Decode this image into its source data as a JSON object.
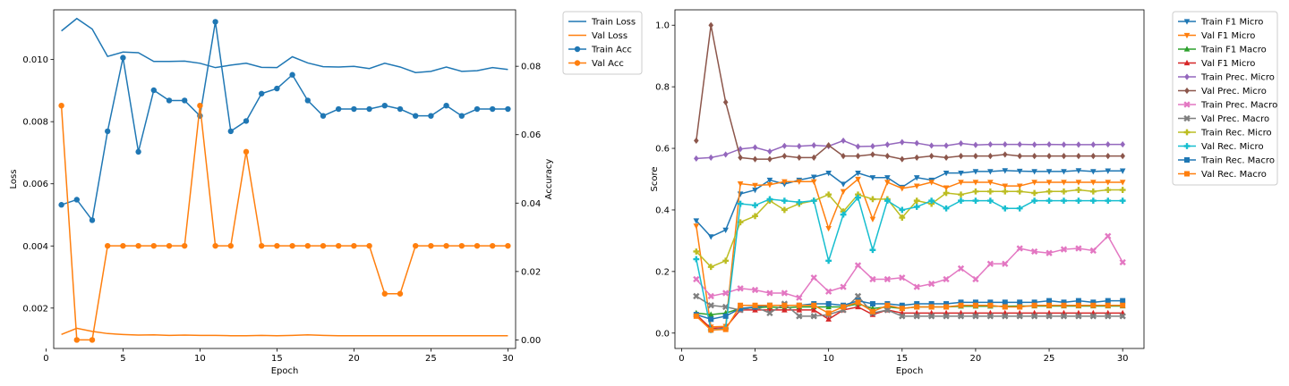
{
  "chart_data": [
    {
      "type": "line",
      "xlabel": "Epoch",
      "ylabel": "Loss",
      "y2label": "Accuracy",
      "x": [
        1,
        2,
        3,
        4,
        5,
        6,
        7,
        8,
        9,
        10,
        11,
        12,
        13,
        14,
        15,
        16,
        17,
        18,
        19,
        20,
        21,
        22,
        23,
        24,
        25,
        26,
        27,
        28,
        29,
        30
      ],
      "xlim": [
        0.5,
        30.5
      ],
      "ylim": [
        0.0007,
        0.0116
      ],
      "y2lim": [
        -0.0025,
        0.0965
      ],
      "xticks": [
        0,
        5,
        10,
        15,
        20,
        25,
        30
      ],
      "yticks": [
        0.002,
        0.004,
        0.006,
        0.008,
        0.01
      ],
      "ytick_labels": [
        "0.002",
        "0.004",
        "0.006",
        "0.008",
        "0.010"
      ],
      "y2ticks": [
        0.0,
        0.02,
        0.04,
        0.06,
        0.08
      ],
      "y2tick_labels": [
        "0.00",
        "0.02",
        "0.04",
        "0.06",
        "0.08"
      ],
      "grid": false,
      "legend_position": "outside-right",
      "series": [
        {
          "name": "Train Loss",
          "axis": "left",
          "color": "#1f77b4",
          "marker": "none",
          "values": [
            0.01092,
            0.01132,
            0.01098,
            0.0101,
            0.01024,
            0.01022,
            0.00994,
            0.00994,
            0.00995,
            0.00988,
            0.00974,
            0.00982,
            0.00988,
            0.00975,
            0.00974,
            0.01009,
            0.00989,
            0.00977,
            0.00976,
            0.00978,
            0.00971,
            0.00988,
            0.00976,
            0.00958,
            0.00962,
            0.00976,
            0.00962,
            0.00964,
            0.00974,
            0.00968
          ]
        },
        {
          "name": "Val Loss",
          "axis": "left",
          "color": "#ff7f0e",
          "marker": "none",
          "values": [
            0.00115,
            0.00135,
            0.00125,
            0.00118,
            0.00115,
            0.00113,
            0.00114,
            0.00112,
            0.00113,
            0.00112,
            0.00112,
            0.00111,
            0.00111,
            0.00112,
            0.00111,
            0.00112,
            0.00114,
            0.00112,
            0.00111,
            0.00111,
            0.00111,
            0.00111,
            0.00111,
            0.00111,
            0.00111,
            0.00111,
            0.00111,
            0.00111,
            0.00111,
            0.00111
          ]
        },
        {
          "name": "Train Acc",
          "axis": "right",
          "color": "#1f77b4",
          "marker": "circle",
          "values": [
            0.0395,
            0.041,
            0.035,
            0.061,
            0.0825,
            0.055,
            0.073,
            0.07,
            0.07,
            0.0655,
            0.093,
            0.061,
            0.064,
            0.072,
            0.0735,
            0.0775,
            0.07,
            0.0655,
            0.0675,
            0.0675,
            0.0675,
            0.0685,
            0.0675,
            0.0655,
            0.0655,
            0.0685,
            0.0655,
            0.0675,
            0.0675,
            0.0675
          ]
        },
        {
          "name": "Val Acc",
          "axis": "right",
          "color": "#ff7f0e",
          "marker": "circle",
          "values": [
            0.0685,
            0.0,
            0.0,
            0.0275,
            0.0275,
            0.0275,
            0.0275,
            0.0275,
            0.0275,
            0.0685,
            0.0275,
            0.0275,
            0.055,
            0.0275,
            0.0275,
            0.0275,
            0.0275,
            0.0275,
            0.0275,
            0.0275,
            0.0275,
            0.0135,
            0.0135,
            0.0275,
            0.0275,
            0.0275,
            0.0275,
            0.0275,
            0.0275,
            0.0275
          ]
        }
      ]
    },
    {
      "type": "line",
      "xlabel": "Epoch",
      "ylabel": "Score",
      "x": [
        1,
        2,
        3,
        4,
        5,
        6,
        7,
        8,
        9,
        10,
        11,
        12,
        13,
        14,
        15,
        16,
        17,
        18,
        19,
        20,
        21,
        22,
        23,
        24,
        25,
        26,
        27,
        28,
        29,
        30
      ],
      "xlim": [
        -0.45,
        31.45
      ],
      "ylim": [
        -0.05,
        1.05
      ],
      "xticks": [
        0,
        5,
        10,
        15,
        20,
        25,
        30
      ],
      "yticks": [
        0.0,
        0.2,
        0.4,
        0.6,
        0.8,
        1.0
      ],
      "ytick_labels": [
        "0.0",
        "0.2",
        "0.4",
        "0.6",
        "0.8",
        "1.0"
      ],
      "grid": false,
      "legend_position": "outside-right",
      "series": [
        {
          "name": "Train F1 Micro",
          "color": "#1f77b4",
          "marker": "tri_down",
          "values": [
            0.365,
            0.313,
            0.335,
            0.452,
            0.465,
            0.497,
            0.484,
            0.497,
            0.507,
            0.52,
            0.484,
            0.52,
            0.505,
            0.505,
            0.474,
            0.505,
            0.497,
            0.52,
            0.52,
            0.525,
            0.525,
            0.528,
            0.526,
            0.525,
            0.525,
            0.525,
            0.528,
            0.525,
            0.527,
            0.527
          ]
        },
        {
          "name": "Val F1 Micro",
          "color": "#ff7f0e",
          "marker": "tri_down",
          "values": [
            0.348,
            0.02,
            0.022,
            0.485,
            0.48,
            0.482,
            0.492,
            0.492,
            0.492,
            0.34,
            0.46,
            0.5,
            0.37,
            0.49,
            0.47,
            0.478,
            0.49,
            0.472,
            0.49,
            0.49,
            0.49,
            0.478,
            0.478,
            0.49,
            0.49,
            0.49,
            0.49,
            0.49,
            0.49,
            0.49
          ]
        },
        {
          "name": "Train F1 Macro",
          "color": "#2ca02c",
          "marker": "tri_up",
          "values": [
            0.065,
            0.06,
            0.065,
            0.08,
            0.082,
            0.085,
            0.082,
            0.085,
            0.085,
            0.085,
            0.085,
            0.095,
            0.08,
            0.085,
            0.08,
            0.085,
            0.085,
            0.085,
            0.087,
            0.087,
            0.087,
            0.087,
            0.088,
            0.088,
            0.088,
            0.088,
            0.088,
            0.088,
            0.088,
            0.088
          ]
        },
        {
          "name": "Val F1 Micro",
          "color": "#d62728",
          "marker": "tri_up",
          "values": [
            0.06,
            0.015,
            0.018,
            0.075,
            0.075,
            0.075,
            0.075,
            0.075,
            0.075,
            0.045,
            0.075,
            0.085,
            0.06,
            0.075,
            0.065,
            0.065,
            0.065,
            0.065,
            0.065,
            0.065,
            0.065,
            0.065,
            0.065,
            0.065,
            0.065,
            0.065,
            0.065,
            0.065,
            0.065,
            0.065
          ]
        },
        {
          "name": "Train Prec. Micro",
          "color": "#9467bd",
          "marker": "diamond",
          "values": [
            0.567,
            0.57,
            0.58,
            0.598,
            0.603,
            0.59,
            0.608,
            0.607,
            0.61,
            0.607,
            0.625,
            0.606,
            0.607,
            0.612,
            0.62,
            0.617,
            0.609,
            0.609,
            0.616,
            0.611,
            0.613,
            0.613,
            0.613,
            0.612,
            0.613,
            0.612,
            0.612,
            0.612,
            0.613,
            0.613
          ]
        },
        {
          "name": "Val Prec. Micro",
          "color": "#8c564b",
          "marker": "diamond",
          "values": [
            0.625,
            1.0,
            0.75,
            0.57,
            0.565,
            0.565,
            0.575,
            0.57,
            0.57,
            0.61,
            0.575,
            0.575,
            0.58,
            0.575,
            0.565,
            0.57,
            0.575,
            0.57,
            0.575,
            0.575,
            0.575,
            0.58,
            0.575,
            0.575,
            0.575,
            0.575,
            0.575,
            0.575,
            0.575,
            0.575
          ]
        },
        {
          "name": "Train Prec. Macro",
          "color": "#e377c2",
          "marker": "x",
          "values": [
            0.175,
            0.12,
            0.13,
            0.145,
            0.14,
            0.13,
            0.13,
            0.115,
            0.18,
            0.135,
            0.15,
            0.22,
            0.175,
            0.175,
            0.18,
            0.15,
            0.16,
            0.175,
            0.21,
            0.175,
            0.225,
            0.225,
            0.275,
            0.265,
            0.26,
            0.272,
            0.275,
            0.268,
            0.315,
            0.23
          ]
        },
        {
          "name": "Val Prec. Macro",
          "color": "#7f7f7f",
          "marker": "x",
          "values": [
            0.12,
            0.09,
            0.085,
            0.075,
            0.085,
            0.065,
            0.095,
            0.055,
            0.055,
            0.06,
            0.075,
            0.12,
            0.065,
            0.075,
            0.055,
            0.055,
            0.055,
            0.055,
            0.055,
            0.055,
            0.055,
            0.055,
            0.055,
            0.055,
            0.055,
            0.055,
            0.055,
            0.055,
            0.055,
            0.055
          ]
        },
        {
          "name": "Train Rec. Micro",
          "color": "#bcbd22",
          "marker": "plus",
          "values": [
            0.265,
            0.215,
            0.235,
            0.36,
            0.38,
            0.43,
            0.4,
            0.42,
            0.43,
            0.45,
            0.395,
            0.45,
            0.435,
            0.435,
            0.375,
            0.43,
            0.42,
            0.455,
            0.45,
            0.46,
            0.46,
            0.46,
            0.46,
            0.455,
            0.46,
            0.46,
            0.465,
            0.46,
            0.465,
            0.465
          ]
        },
        {
          "name": "Val Rec. Micro",
          "color": "#17becf",
          "marker": "plus",
          "values": [
            0.24,
            0.01,
            0.015,
            0.42,
            0.415,
            0.435,
            0.43,
            0.425,
            0.43,
            0.235,
            0.385,
            0.44,
            0.27,
            0.43,
            0.4,
            0.41,
            0.43,
            0.405,
            0.43,
            0.43,
            0.43,
            0.405,
            0.405,
            0.43,
            0.43,
            0.43,
            0.43,
            0.43,
            0.43,
            0.43
          ]
        },
        {
          "name": "Train Rec. Macro",
          "color": "#1f77b4",
          "marker": "square",
          "values": [
            0.06,
            0.045,
            0.055,
            0.08,
            0.085,
            0.09,
            0.09,
            0.09,
            0.095,
            0.095,
            0.09,
            0.105,
            0.095,
            0.095,
            0.09,
            0.095,
            0.095,
            0.095,
            0.1,
            0.1,
            0.1,
            0.1,
            0.1,
            0.1,
            0.105,
            0.1,
            0.105,
            0.1,
            0.105,
            0.105
          ]
        },
        {
          "name": "Val Rec. Macro",
          "color": "#ff7f0e",
          "marker": "square",
          "values": [
            0.055,
            0.01,
            0.012,
            0.09,
            0.09,
            0.09,
            0.09,
            0.09,
            0.09,
            0.065,
            0.085,
            0.1,
            0.07,
            0.09,
            0.08,
            0.085,
            0.085,
            0.085,
            0.09,
            0.09,
            0.09,
            0.085,
            0.085,
            0.09,
            0.09,
            0.09,
            0.09,
            0.09,
            0.09,
            0.09
          ]
        }
      ]
    }
  ]
}
